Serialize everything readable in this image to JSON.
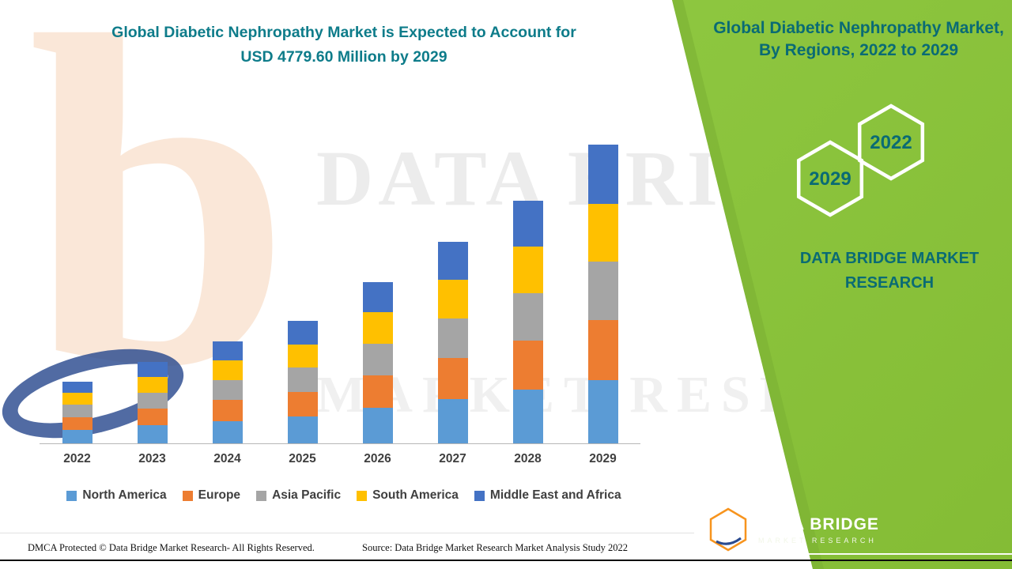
{
  "header": {
    "left_title_line1": "Global Diabetic Nephropathy Market is Expected to Account for",
    "left_title_line2": "USD 4779.60 Million by 2029",
    "right_title": "Global Diabetic Nephropathy Market, By Regions, 2022 to 2029"
  },
  "side_panel": {
    "hexagon_year_top": "2022",
    "hexagon_year_bottom": "2029",
    "brand_text": "DATA BRIDGE MARKET RESEARCH",
    "logo_letter": "b",
    "logo_brand": "DATA BRIDGE",
    "logo_sub": "MARKET RESEARCH"
  },
  "watermark": {
    "letter": "b",
    "line1": "DATA BRIDGE",
    "line2": "MARKET RESEARCH"
  },
  "footer": {
    "dmca": "DMCA Protected © Data Bridge Market Research- All Rights Reserved.",
    "source": "Source: Data Bridge Market Research Market Analysis Study 2022"
  },
  "colors": {
    "accent_green": "#8dc63f",
    "teal_heading": "#0e7c8a",
    "panel_teal": "#0a6b74",
    "logo_orange": "#f7941e"
  },
  "chart_data": {
    "type": "bar",
    "stacked": true,
    "title": "Global Diabetic Nephropathy Market is Expected to Account for USD 4779.60 Million by 2029",
    "unit": "USD Million",
    "categories": [
      "2022",
      "2023",
      "2024",
      "2025",
      "2026",
      "2027",
      "2028",
      "2029"
    ],
    "series": [
      {
        "name": "North America",
        "color": "#5b9bd5",
        "values": [
          220,
          290,
          360,
          430,
          570,
          710,
          860,
          1010
        ]
      },
      {
        "name": "Europe",
        "color": "#ed7d31",
        "values": [
          200,
          265,
          330,
          395,
          520,
          650,
          780,
          960
        ]
      },
      {
        "name": "Asia Pacific",
        "color": "#a5a5a5",
        "values": [
          195,
          255,
          320,
          385,
          510,
          635,
          765,
          940
        ]
      },
      {
        "name": "South America",
        "color": "#ffc000",
        "values": [
          190,
          250,
          315,
          375,
          495,
          620,
          745,
          920
        ]
      },
      {
        "name": "Middle East and Africa",
        "color": "#4472c4",
        "values": [
          185,
          245,
          305,
          370,
          490,
          610,
          735,
          949.6
        ]
      }
    ],
    "total_2029": 4779.6,
    "xlabel": "",
    "ylabel": "",
    "y_axis_visible": false,
    "gridlines": false,
    "legend_position": "bottom"
  }
}
